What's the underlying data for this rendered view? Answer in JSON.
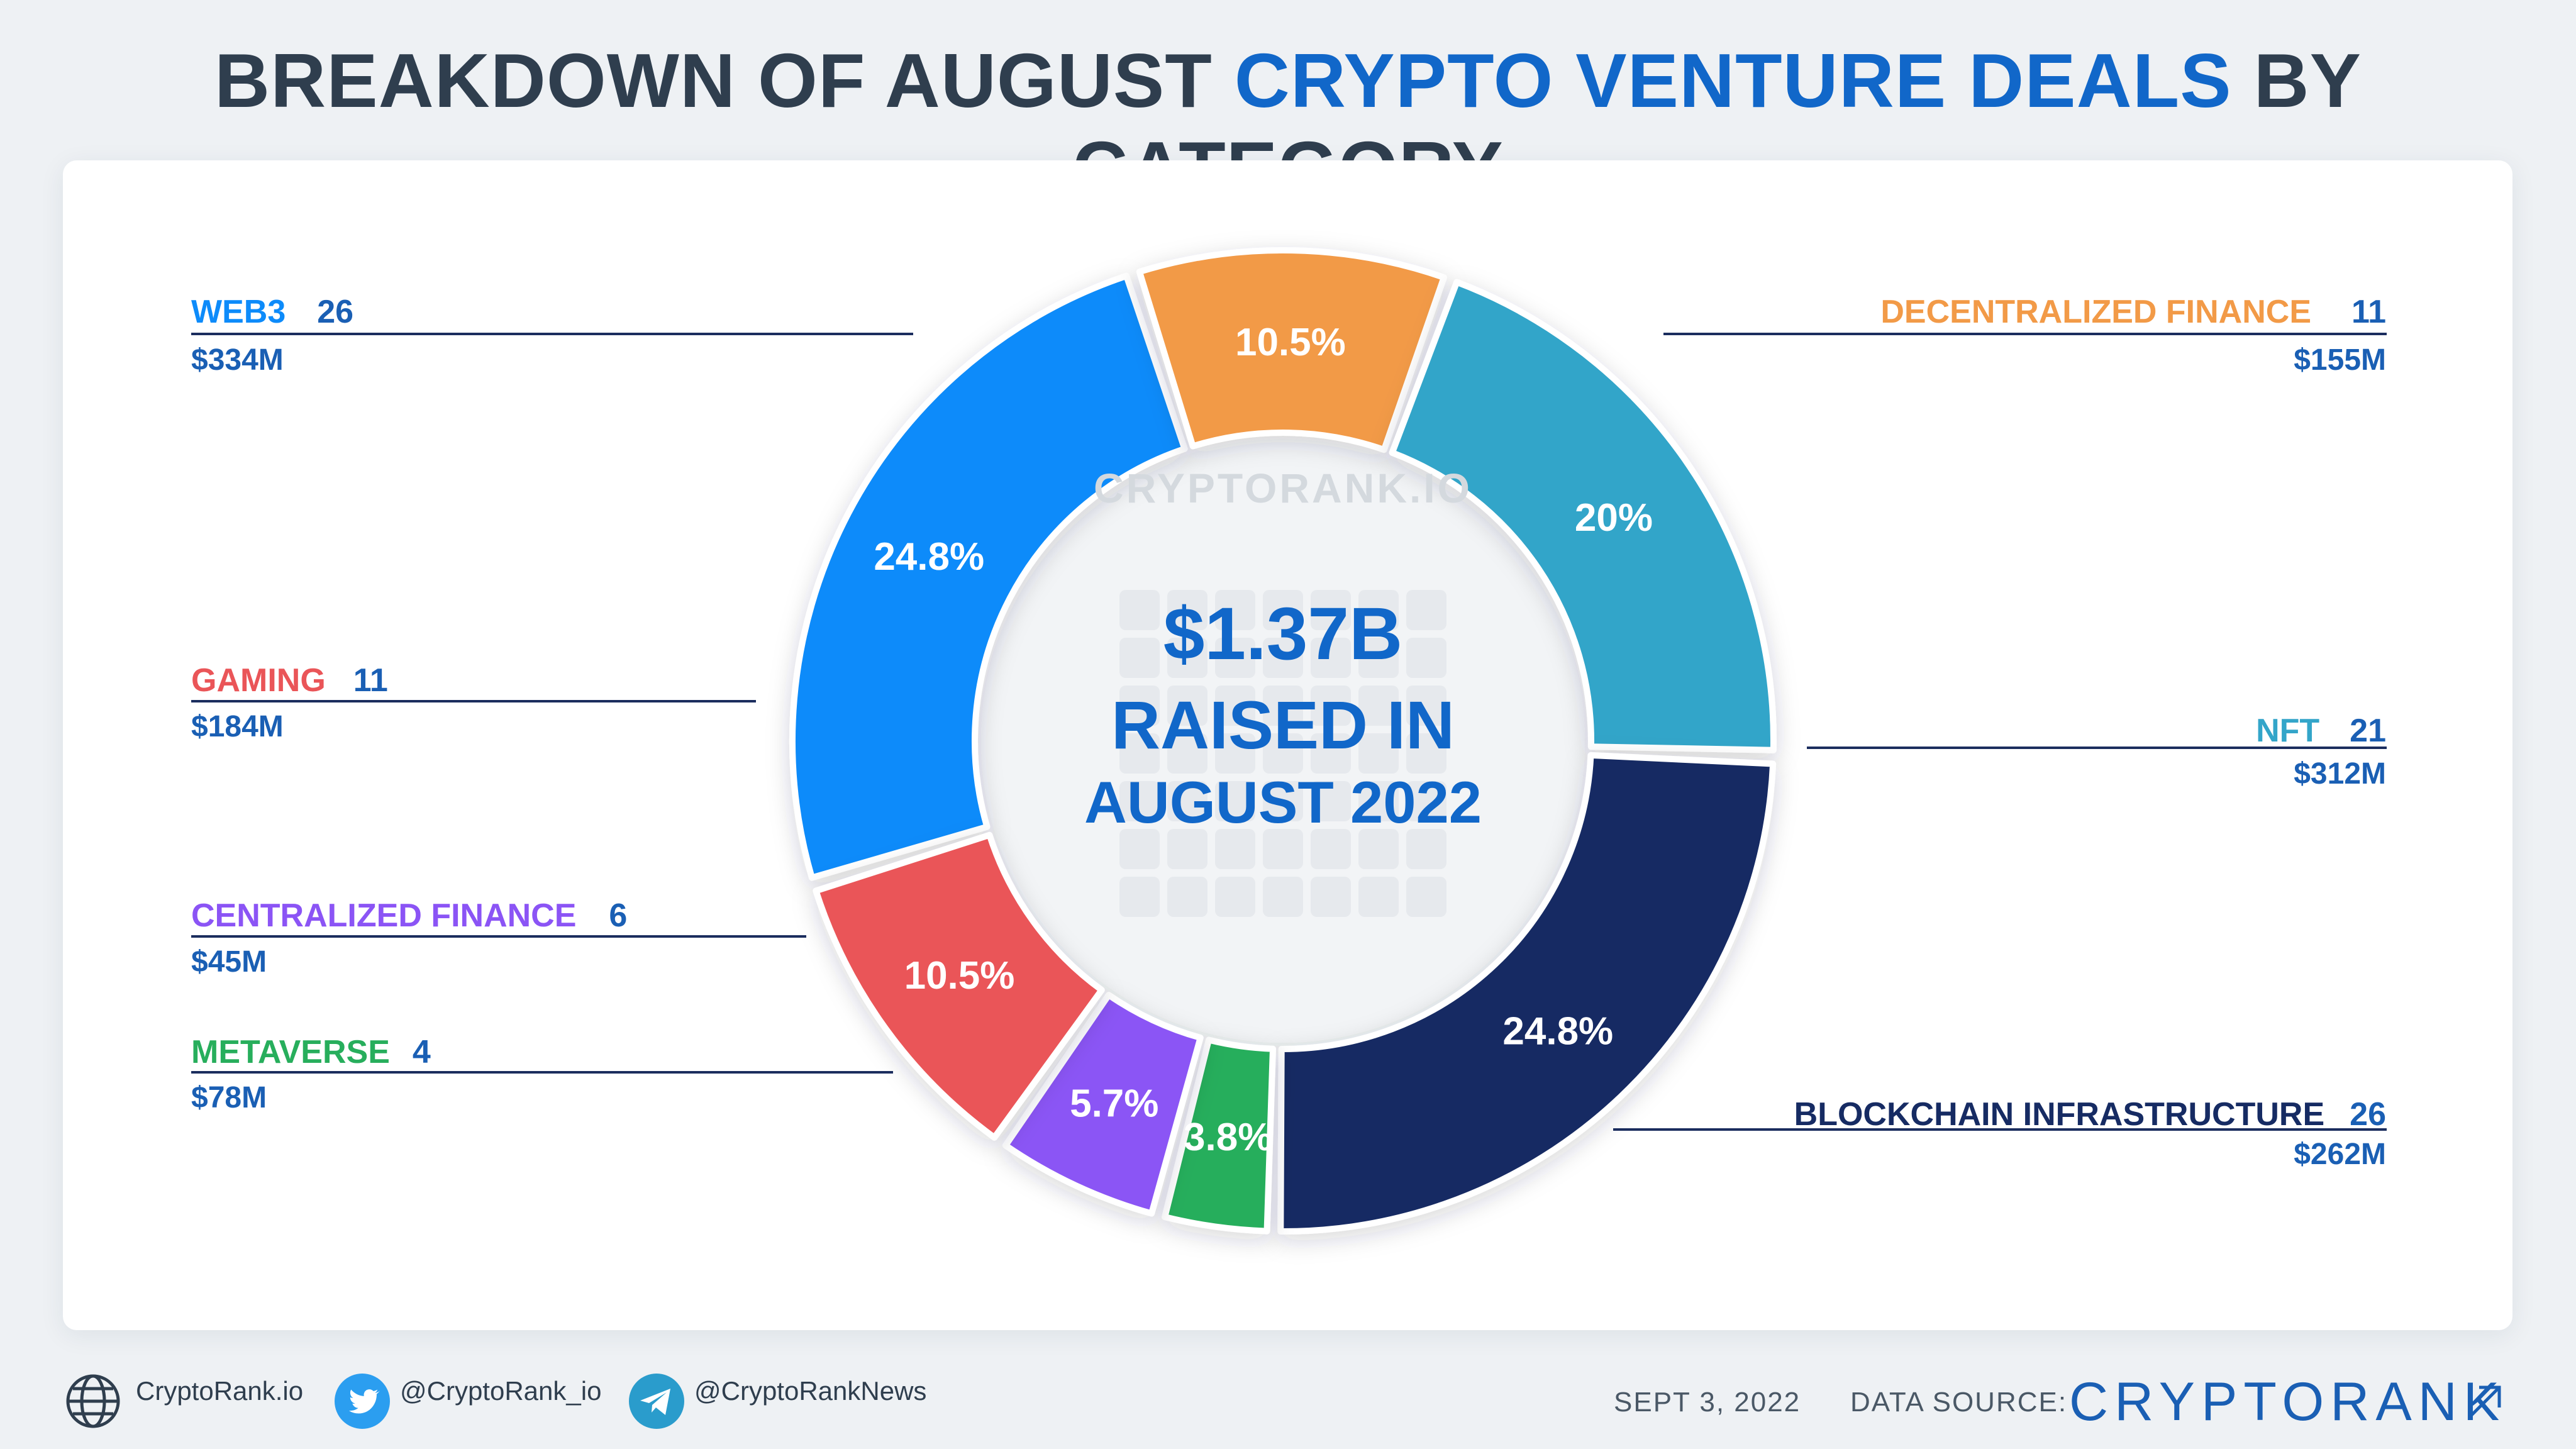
{
  "title": {
    "part1": "BREAKDOWN OF AUGUST ",
    "part2": "CRYPTO VENTURE DEALS",
    "part3": " BY CATEGORY"
  },
  "center": {
    "watermark": "CRYPTORANK.IO",
    "line1": "$1.37B",
    "line2": "RAISED IN",
    "line3": "AUGUST 2022"
  },
  "chart_data": {
    "type": "pie",
    "total": "$1.37B",
    "slices": [
      {
        "name": "WEB3",
        "deals": "26",
        "amount": "$334M",
        "percent": 24.8,
        "label": "24.8%",
        "color": "#0d8bfa"
      },
      {
        "name": "DECENTRALIZED FINANCE",
        "deals": "11",
        "amount": "$155M",
        "percent": 10.5,
        "label": "10.5%",
        "color": "#f29a47"
      },
      {
        "name": "NFT",
        "deals": "21",
        "amount": "$312M",
        "percent": 20,
        "label": "20%",
        "color": "#33a5c9"
      },
      {
        "name": "BLOCKCHAIN INFRASTRUCTURE",
        "deals": "26",
        "amount": "$262M",
        "percent": 24.8,
        "label": "24.8%",
        "color": "#162b63"
      },
      {
        "name": "METAVERSE",
        "deals": "4",
        "amount": "$78M",
        "percent": 3.8,
        "label": "3.8%",
        "color": "#27ae5c"
      },
      {
        "name": "CENTRALIZED FINANCE",
        "deals": "6",
        "amount": "$45M",
        "percent": 5.7,
        "label": "5.7%",
        "color": "#8b54f5"
      },
      {
        "name": "GAMING",
        "deals": "11",
        "amount": "$184M",
        "percent": 10.5,
        "label": "10.5%",
        "color": "#ea5558"
      }
    ]
  },
  "footer": {
    "website": "CryptoRank.io",
    "twitter": "@CryptoRank_io",
    "telegram": "@CryptoRankNews",
    "date": "SEPT 3, 2022",
    "data_source_label": "DATA SOURCE:",
    "brand": "CRYPTORANK"
  }
}
